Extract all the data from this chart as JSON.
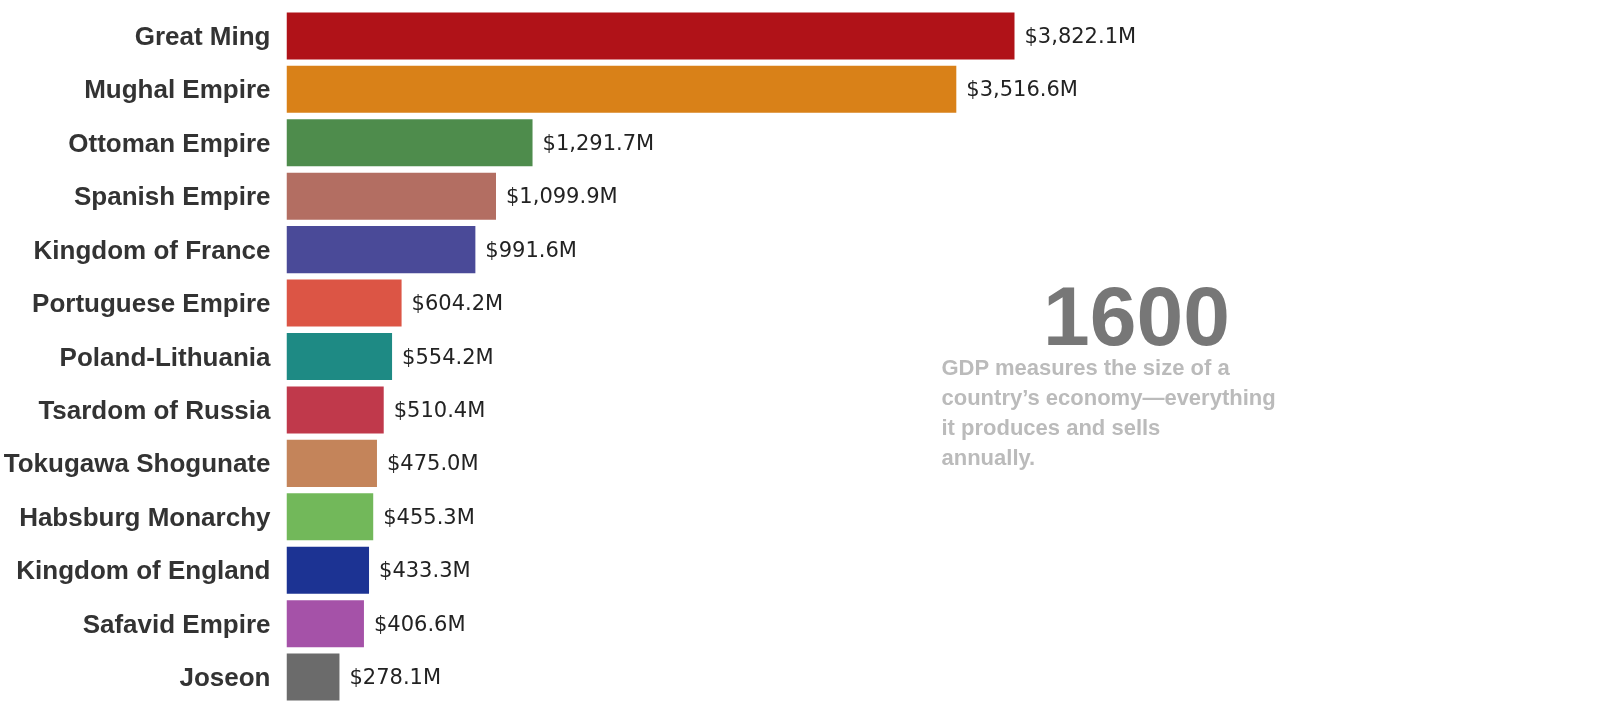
{
  "chart_data": {
    "type": "bar",
    "orientation": "horizontal",
    "categories": [
      "Great Ming",
      "Mughal Empire",
      "Ottoman Empire",
      "Spanish Empire",
      "Kingdom of France",
      "Portuguese Empire",
      "Poland-Lithuania",
      "Tsardom of Russia",
      "Tokugawa Shogunate",
      "Habsburg Monarchy",
      "Kingdom of England",
      "Safavid Empire",
      "Joseon"
    ],
    "values": [
      3822.1,
      3516.6,
      1291.7,
      1099.9,
      991.6,
      604.2,
      554.2,
      510.4,
      475.0,
      455.3,
      433.3,
      406.6,
      278.1
    ],
    "value_labels": [
      "$3,822.1M",
      "$3,516.6M",
      "$1,291.7M",
      "$1,099.9M",
      "$991.6M",
      "$604.2M",
      "$554.2M",
      "$510.4M",
      "$475.0M",
      "$455.3M",
      "$433.3M",
      "$406.6M",
      "$278.1M"
    ],
    "colors": [
      "#b01218",
      "#d98118",
      "#4e8c4c",
      "#b36e62",
      "#4a4a98",
      "#dc5545",
      "#1e8a84",
      "#c0394b",
      "#c4845a",
      "#72b85a",
      "#1c3393",
      "#a552a8",
      "#6b6b6b"
    ],
    "tick_labels": "y",
    "annotations": [
      "1600",
      "GDP measures the size of a country’s economy—everything it produces and sells annually."
    ]
  }
}
